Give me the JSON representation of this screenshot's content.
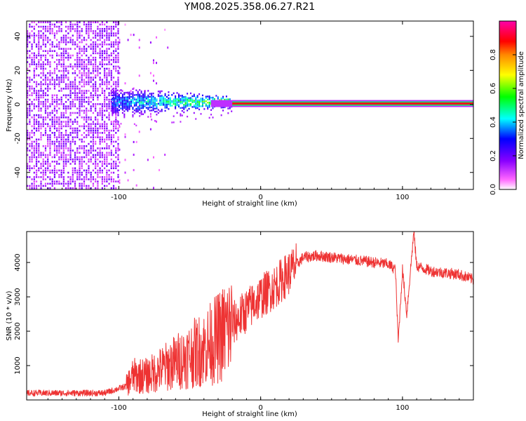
{
  "title": "YM08.2025.358.06.27.R21",
  "chart_data": [
    {
      "type": "heatmap",
      "xlabel": "Height of straight line (km)",
      "ylabel": "Frequency (Hz)",
      "xlim": [
        -165,
        150
      ],
      "ylim": [
        -50,
        49
      ],
      "xticks": [
        -100,
        0,
        100
      ],
      "yticks": [
        -40,
        -20,
        0,
        20,
        40
      ],
      "colorbar": {
        "label": "Normalized spectral amplitude",
        "range": [
          0,
          1
        ],
        "ticks": [
          "0.0",
          "0.2",
          "0.4",
          "0.6",
          "0.8"
        ],
        "colors": [
          "#ffffff",
          "#ff66ff",
          "#8800ff",
          "#0000ff",
          "#00ffff",
          "#00ff00",
          "#ffff00",
          "#ff0000",
          "#ff00aa"
        ]
      },
      "features": [
        {
          "name": "broadband noise",
          "x_range": [
            -165,
            -100
          ],
          "freq_range": [
            -50,
            49
          ],
          "amplitude": 0.2
        },
        {
          "name": "scattered noise",
          "x_range": [
            -100,
            -60
          ],
          "freq_range": [
            -50,
            49
          ],
          "amplitude": 0.05
        },
        {
          "name": "signal onset band",
          "x_range": [
            -105,
            -20
          ],
          "freq_range": [
            -6,
            10
          ],
          "amplitude": 0.5
        },
        {
          "name": "carrier line",
          "x_range": [
            -20,
            150
          ],
          "freq": 0.5,
          "amplitude": 1.0
        }
      ]
    },
    {
      "type": "line",
      "xlabel": "Height of straight line (km)",
      "ylabel": "SNR (10 * v/v)",
      "xlim": [
        -165,
        150
      ],
      "ylim": [
        0,
        4900
      ],
      "xticks": [
        -100,
        0,
        100
      ],
      "yticks": [
        1000,
        2000,
        3000,
        4000
      ],
      "color": "#ee3333",
      "series": [
        {
          "name": "SNR",
          "x": [
            -165,
            -140,
            -110,
            -95,
            -90,
            -80,
            -70,
            -60,
            -50,
            -40,
            -30,
            -20,
            -10,
            0,
            10,
            20,
            30,
            40,
            50,
            60,
            70,
            80,
            90,
            95,
            97,
            100,
            103,
            108,
            110,
            120,
            130,
            140,
            150
          ],
          "y": [
            200,
            200,
            200,
            400,
            700,
            700,
            900,
            1100,
            1300,
            1500,
            1800,
            2200,
            2600,
            3000,
            3300,
            3700,
            4150,
            4200,
            4150,
            4100,
            4050,
            4000,
            3950,
            3800,
            1700,
            3800,
            2500,
            4900,
            3900,
            3750,
            3700,
            3650,
            3500
          ]
        }
      ]
    }
  ]
}
